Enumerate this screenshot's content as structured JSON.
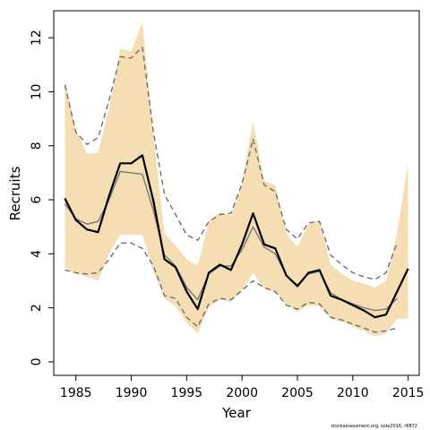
{
  "chart_data": {
    "type": "line",
    "xlabel": "Year",
    "ylabel": "Recruits",
    "xlim": [
      1983,
      2016
    ],
    "ylim": [
      -0.5,
      13.0
    ],
    "xticks": [
      1985,
      1990,
      1995,
      2000,
      2005,
      2010,
      2015
    ],
    "yticks": [
      0,
      2,
      4,
      6,
      8,
      10,
      12
    ],
    "grid": false,
    "legend": "none",
    "credit": "stockassessment.org, sole2016, r6872",
    "colors": {
      "band": "#f5deb3",
      "main_line": "#000000",
      "secondary_line": "#777777",
      "dashed_lines": "#707070"
    },
    "x": [
      1984,
      1985,
      1986,
      1987,
      1988,
      1989,
      1990,
      1991,
      1992,
      1993,
      1994,
      1995,
      1996,
      1997,
      1998,
      1999,
      2000,
      2001,
      2002,
      2003,
      2004,
      2005,
      2006,
      2007,
      2008,
      2009,
      2010,
      2011,
      2012,
      2013,
      2014,
      2015
    ],
    "band_upper": [
      10.5,
      8.6,
      7.7,
      7.75,
      9.4,
      11.6,
      11.5,
      12.6,
      8.4,
      4.75,
      4.3,
      3.8,
      3.55,
      5.2,
      5.55,
      5.4,
      6.6,
      8.95,
      6.7,
      6.55,
      4.75,
      4.25,
      5.1,
      5.25,
      3.6,
      3.25,
      3.0,
      2.9,
      2.75,
      3.0,
      4.8,
      7.35
    ],
    "band_lower": [
      3.5,
      3.25,
      3.15,
      3.0,
      4.0,
      4.7,
      4.7,
      4.7,
      3.35,
      2.35,
      2.05,
      1.45,
      1.05,
      2.0,
      2.3,
      2.2,
      2.65,
      3.3,
      2.7,
      2.6,
      2.1,
      1.85,
      2.1,
      2.05,
      1.6,
      1.5,
      1.3,
      1.15,
      0.95,
      1.05,
      1.6,
      1.6
    ],
    "series": [
      {
        "values": [
          6.05,
          5.25,
          4.9,
          4.8,
          6.15,
          7.35,
          7.35,
          7.65,
          5.95,
          3.8,
          3.5,
          2.6,
          1.95,
          3.3,
          3.6,
          3.4,
          4.35,
          5.5,
          4.35,
          4.2,
          3.2,
          2.8,
          3.3,
          3.4,
          2.45,
          2.3,
          2.1,
          1.9,
          1.65,
          1.75,
          2.6,
          3.45
        ],
        "style": "solid",
        "color": "#000000"
      },
      {
        "values": [
          5.85,
          5.3,
          5.1,
          5.2,
          6.0,
          7.05,
          7.0,
          6.95,
          5.6,
          3.95,
          3.55,
          2.75,
          2.3,
          3.25,
          3.55,
          3.55,
          4.15,
          5.0,
          4.25,
          4.0,
          3.2,
          2.85,
          3.25,
          3.35,
          2.55,
          2.3,
          2.15,
          2.0,
          1.9,
          1.95,
          2.35,
          null
        ],
        "style": "solid",
        "color": "#777777"
      },
      {
        "values": [
          10.25,
          8.5,
          8.05,
          8.3,
          9.7,
          11.3,
          11.25,
          11.65,
          8.5,
          6.2,
          5.45,
          4.7,
          4.5,
          5.2,
          5.45,
          5.5,
          6.6,
          8.25,
          6.55,
          6.3,
          4.9,
          4.55,
          5.15,
          5.2,
          3.95,
          3.6,
          3.3,
          3.15,
          3.05,
          3.3,
          4.4,
          null
        ],
        "style": "dashed",
        "color": "#707070"
      },
      {
        "values": [
          3.4,
          3.3,
          3.25,
          3.3,
          3.8,
          4.4,
          4.4,
          4.2,
          3.55,
          2.45,
          2.35,
          1.65,
          1.3,
          2.15,
          2.35,
          2.3,
          2.65,
          3.0,
          2.75,
          2.6,
          2.1,
          1.95,
          2.2,
          2.15,
          1.65,
          1.55,
          1.4,
          1.25,
          1.1,
          1.15,
          1.25,
          null
        ],
        "style": "dashed",
        "color": "#707070"
      }
    ]
  }
}
